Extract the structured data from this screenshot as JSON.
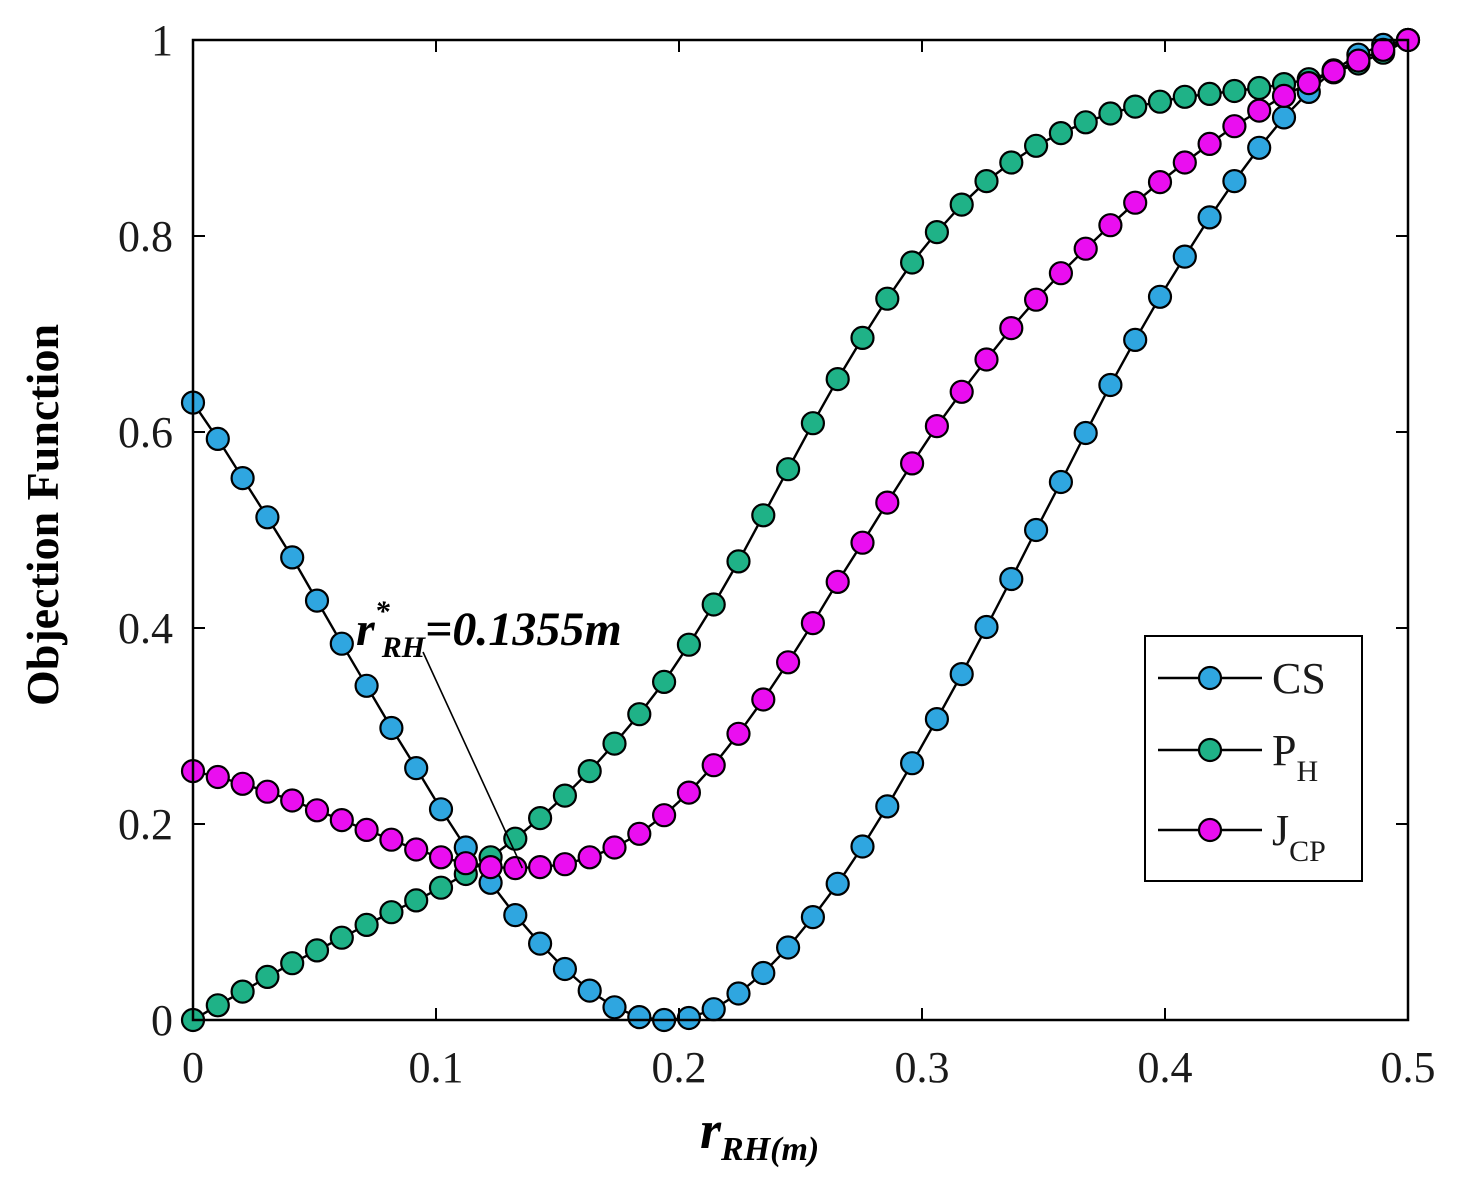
{
  "chart_data": {
    "type": "line",
    "xlabel": {
      "main": "r",
      "sub": "RH(m)"
    },
    "ylabel": "Objection Function",
    "xlim": [
      0,
      0.5
    ],
    "ylim": [
      0,
      1
    ],
    "xticks": [
      0,
      0.1,
      0.2,
      0.3,
      0.4,
      0.5
    ],
    "xtick_labels": [
      "0",
      "0.1",
      "0.2",
      "0.3",
      "0.4",
      "0.5"
    ],
    "yticks": [
      0,
      0.2,
      0.4,
      0.6,
      0.8,
      1
    ],
    "ytick_labels": [
      "0",
      "0.2",
      "0.4",
      "0.6",
      "0.8",
      "1"
    ],
    "grid": false,
    "legend_position": "center-right",
    "series": [
      {
        "name": "CS",
        "legend_main": "CS",
        "legend_sub": "",
        "color": "#2fa6e0",
        "values": [
          0.63,
          0.593,
          0.553,
          0.513,
          0.472,
          0.428,
          0.384,
          0.341,
          0.298,
          0.257,
          0.215,
          0.176,
          0.14,
          0.107,
          0.078,
          0.052,
          0.03,
          0.013,
          0.003,
          0.0,
          0.002,
          0.011,
          0.027,
          0.048,
          0.074,
          0.105,
          0.139,
          0.177,
          0.218,
          0.262,
          0.307,
          0.353,
          0.401,
          0.45,
          0.5,
          0.549,
          0.599,
          0.648,
          0.694,
          0.738,
          0.779,
          0.819,
          0.856,
          0.89,
          0.921,
          0.947,
          0.969,
          0.985,
          0.995,
          1.0
        ]
      },
      {
        "name": "PH",
        "legend_main": "P",
        "legend_sub": "H",
        "color": "#1fb287",
        "values": [
          0.0,
          0.015,
          0.029,
          0.044,
          0.058,
          0.071,
          0.084,
          0.097,
          0.11,
          0.122,
          0.135,
          0.149,
          0.166,
          0.185,
          0.206,
          0.229,
          0.254,
          0.282,
          0.312,
          0.345,
          0.383,
          0.424,
          0.468,
          0.515,
          0.562,
          0.609,
          0.654,
          0.696,
          0.736,
          0.773,
          0.804,
          0.832,
          0.856,
          0.875,
          0.892,
          0.905,
          0.916,
          0.925,
          0.932,
          0.937,
          0.942,
          0.945,
          0.948,
          0.951,
          0.955,
          0.96,
          0.967,
          0.976,
          0.987,
          1.0
        ]
      },
      {
        "name": "JCP",
        "legend_main": "J",
        "legend_sub": "CP",
        "color": "#ea0ef0",
        "values": [
          0.254,
          0.248,
          0.241,
          0.233,
          0.224,
          0.214,
          0.204,
          0.194,
          0.184,
          0.174,
          0.166,
          0.16,
          0.156,
          0.155,
          0.156,
          0.159,
          0.166,
          0.176,
          0.19,
          0.209,
          0.232,
          0.26,
          0.292,
          0.327,
          0.365,
          0.405,
          0.447,
          0.487,
          0.528,
          0.568,
          0.606,
          0.641,
          0.674,
          0.706,
          0.735,
          0.762,
          0.787,
          0.811,
          0.834,
          0.855,
          0.875,
          0.894,
          0.912,
          0.928,
          0.943,
          0.956,
          0.968,
          0.979,
          0.99,
          1.0
        ]
      }
    ],
    "annotation": {
      "main": "r",
      "sup": "*",
      "sub": "RH",
      "rest": "=0.1355m",
      "point_x": 0.1355,
      "point_y": 0.155
    }
  }
}
